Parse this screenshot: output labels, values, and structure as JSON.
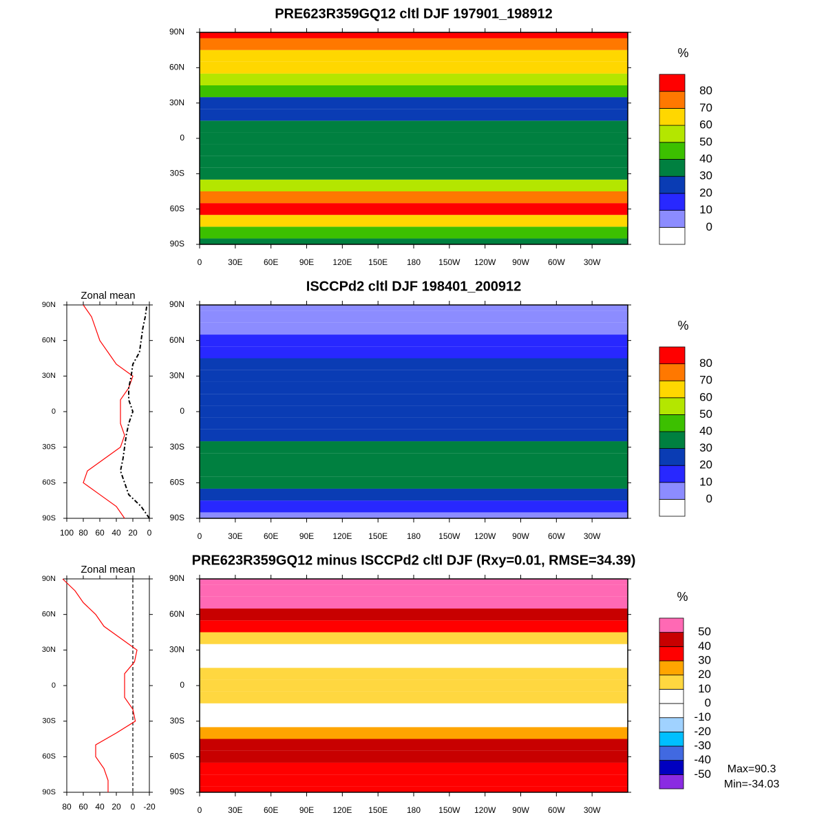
{
  "chart_data": [
    {
      "type": "map",
      "title": "PRE623R359GQ12 cltl DJF 197901_198912",
      "xlim": [
        0,
        360
      ],
      "xticks": [
        0,
        {
          "value": 30,
          "label": "30E"
        },
        {
          "value": 60,
          "label": "60E"
        },
        {
          "value": 90,
          "label": "90E"
        },
        {
          "value": 120,
          "label": "120E"
        },
        {
          "value": 150,
          "label": "150E"
        },
        180,
        {
          "value": 210,
          "label": "150W"
        },
        {
          "value": 240,
          "label": "120W"
        },
        {
          "value": 270,
          "label": "90W"
        },
        {
          "value": 300,
          "label": "60W"
        },
        {
          "value": 330,
          "label": "30W"
        }
      ],
      "ylim": [
        -90,
        90
      ],
      "yticks": [
        {
          "value": 90,
          "label": "90N"
        },
        {
          "value": 60,
          "label": "60N"
        },
        {
          "value": 30,
          "label": "30N"
        },
        0,
        {
          "value": -30,
          "label": "30S"
        },
        {
          "value": -60,
          "label": "60S"
        },
        {
          "value": -90,
          "label": "90S"
        }
      ],
      "colorbar": {
        "unit": "%",
        "levels": [
          0,
          10,
          20,
          30,
          40,
          50,
          60,
          70,
          80
        ],
        "colors": [
          "#ffffff",
          "#8c8cff",
          "#2828ff",
          "#0a3cb4",
          "#008040",
          "#3cc000",
          "#b4e600",
          "#ffd700",
          "#ff7800",
          "#ff0000"
        ]
      }
    },
    {
      "type": "line",
      "title": "Zonal mean",
      "y": [
        -90,
        -80,
        -70,
        -60,
        -50,
        -40,
        -30,
        -20,
        -10,
        0,
        10,
        20,
        30,
        40,
        50,
        60,
        70,
        80,
        90
      ],
      "series": [
        {
          "name": "PRE623R359GQ12",
          "color": "#ff0000",
          "dash": false,
          "values": [
            30,
            40,
            60,
            80,
            75,
            55,
            35,
            30,
            35,
            35,
            35,
            25,
            20,
            40,
            50,
            60,
            65,
            70,
            80
          ]
        },
        {
          "name": "ISCCPd2",
          "color": "#000000",
          "dash": true,
          "values": [
            0,
            10,
            25,
            30,
            35,
            32,
            30,
            28,
            25,
            20,
            25,
            25,
            22,
            20,
            12,
            10,
            8,
            5,
            3
          ]
        }
      ],
      "xlim": [
        100,
        0
      ],
      "xticks": [
        100,
        80,
        60,
        40,
        20,
        0
      ],
      "ylim": [
        -90,
        90
      ],
      "yticks": [
        {
          "value": 90,
          "label": "90N"
        },
        {
          "value": 60,
          "label": "60N"
        },
        {
          "value": 30,
          "label": "30N"
        },
        0,
        {
          "value": -30,
          "label": "30S"
        },
        {
          "value": -60,
          "label": "60S"
        },
        {
          "value": -90,
          "label": "90S"
        }
      ]
    },
    {
      "type": "map",
      "title": "ISCCPd2 cltl DJF 198401_200912",
      "xlim": [
        0,
        360
      ],
      "xticks": [
        0,
        {
          "value": 30,
          "label": "30E"
        },
        {
          "value": 60,
          "label": "60E"
        },
        {
          "value": 90,
          "label": "90E"
        },
        {
          "value": 120,
          "label": "120E"
        },
        {
          "value": 150,
          "label": "150E"
        },
        180,
        {
          "value": 210,
          "label": "150W"
        },
        {
          "value": 240,
          "label": "120W"
        },
        {
          "value": 270,
          "label": "90W"
        },
        {
          "value": 300,
          "label": "60W"
        },
        {
          "value": 330,
          "label": "30W"
        }
      ],
      "ylim": [
        -90,
        90
      ],
      "yticks": [
        {
          "value": 90,
          "label": "90N"
        },
        {
          "value": 60,
          "label": "60N"
        },
        {
          "value": 30,
          "label": "30N"
        },
        0,
        {
          "value": -30,
          "label": "30S"
        },
        {
          "value": -60,
          "label": "60S"
        },
        {
          "value": -90,
          "label": "90S"
        }
      ],
      "colorbar": {
        "unit": "%",
        "levels": [
          0,
          10,
          20,
          30,
          40,
          50,
          60,
          70,
          80
        ],
        "colors": [
          "#ffffff",
          "#8c8cff",
          "#2828ff",
          "#0a3cb4",
          "#008040",
          "#3cc000",
          "#b4e600",
          "#ffd700",
          "#ff7800",
          "#ff0000"
        ]
      }
    },
    {
      "type": "line",
      "title": "Zonal mean",
      "y": [
        -90,
        -80,
        -70,
        -60,
        -50,
        -40,
        -30,
        -20,
        -10,
        0,
        10,
        20,
        30,
        40,
        50,
        60,
        70,
        80,
        90
      ],
      "series": [
        {
          "name": "PRE623R359GQ12 minus ISCCPd2",
          "color": "#ff0000",
          "dash": false,
          "values": [
            30,
            30,
            35,
            45,
            45,
            20,
            -3,
            0,
            10,
            10,
            10,
            -2,
            -5,
            15,
            35,
            45,
            60,
            70,
            85
          ]
        }
      ],
      "xlim": [
        80,
        -20
      ],
      "xticks": [
        80,
        60,
        40,
        20,
        0,
        -20
      ],
      "ylim": [
        -90,
        90
      ],
      "yticks": [
        {
          "value": 90,
          "label": "90N"
        },
        {
          "value": 60,
          "label": "60N"
        },
        {
          "value": 30,
          "label": "30N"
        },
        0,
        {
          "value": -30,
          "label": "30S"
        },
        {
          "value": -60,
          "label": "60S"
        },
        {
          "value": -90,
          "label": "90S"
        }
      ]
    },
    {
      "type": "map",
      "title": "PRE623R359GQ12 minus ISCCPd2 cltl DJF (Rxy=0.01, RMSE=34.39)",
      "xlim": [
        0,
        360
      ],
      "xticks": [
        0,
        {
          "value": 30,
          "label": "30E"
        },
        {
          "value": 60,
          "label": "60E"
        },
        {
          "value": 90,
          "label": "90E"
        },
        {
          "value": 120,
          "label": "120E"
        },
        {
          "value": 150,
          "label": "150E"
        },
        180,
        {
          "value": 210,
          "label": "150W"
        },
        {
          "value": 240,
          "label": "120W"
        },
        {
          "value": 270,
          "label": "90W"
        },
        {
          "value": 300,
          "label": "60W"
        },
        {
          "value": 330,
          "label": "30W"
        }
      ],
      "ylim": [
        -90,
        90
      ],
      "yticks": [
        {
          "value": 90,
          "label": "90N"
        },
        {
          "value": 60,
          "label": "60N"
        },
        {
          "value": 30,
          "label": "30N"
        },
        0,
        {
          "value": -30,
          "label": "30S"
        },
        {
          "value": -60,
          "label": "60S"
        },
        {
          "value": -90,
          "label": "90S"
        }
      ],
      "colorbar": {
        "unit": "%",
        "levels": [
          -50,
          -40,
          -30,
          -20,
          -10,
          0,
          10,
          20,
          30,
          40,
          50
        ],
        "colors": [
          "#8a2be2",
          "#0000c0",
          "#4169e1",
          "#00bfff",
          "#a0d2ff",
          "#ffffff",
          "#ffffff",
          "#ffd740",
          "#ffa500",
          "#ff0000",
          "#c80000",
          "#ff69b4"
        ]
      },
      "annotations": [
        "Max=90.3",
        "Min=-34.03"
      ]
    }
  ]
}
